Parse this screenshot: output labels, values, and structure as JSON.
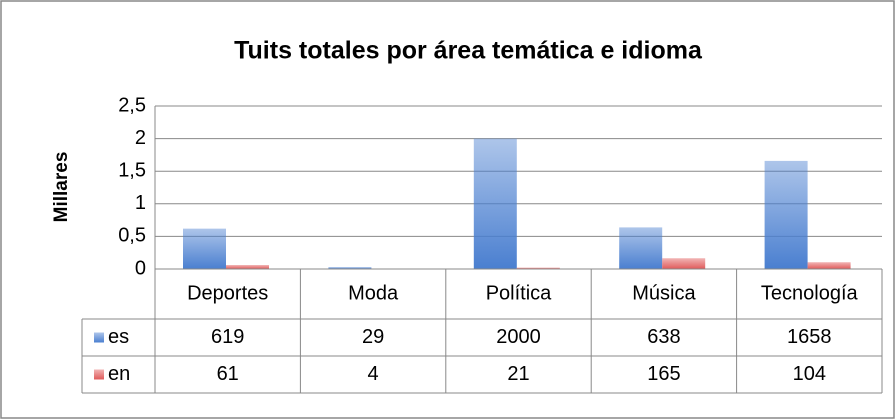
{
  "chart_data": {
    "type": "bar",
    "title": "Tuits totales por área temática e idioma",
    "y_label": "Millares",
    "categories": [
      "Deportes",
      "Moda",
      "Política",
      "Música",
      "Tecnología"
    ],
    "series": [
      {
        "name": "es",
        "color": "#4a7fd0",
        "values": [
          0.619,
          0.029,
          2.0,
          0.638,
          1.658
        ],
        "value_labels": [
          "619",
          "29",
          "2000",
          "638",
          "1658"
        ]
      },
      {
        "name": "en",
        "color": "#e05a5a",
        "values": [
          0.061,
          0.004,
          0.021,
          0.165,
          0.104
        ],
        "value_labels": [
          "61",
          "4",
          "21",
          "165",
          "104"
        ]
      }
    ],
    "ylim": [
      0,
      2.5
    ],
    "yticks": [
      0,
      {
        "value": 0.5,
        "label": "0,5"
      },
      1,
      {
        "value": 1.5,
        "label": "1,5"
      },
      2,
      {
        "value": 2.5,
        "label": "2,5"
      }
    ],
    "grid": true
  }
}
